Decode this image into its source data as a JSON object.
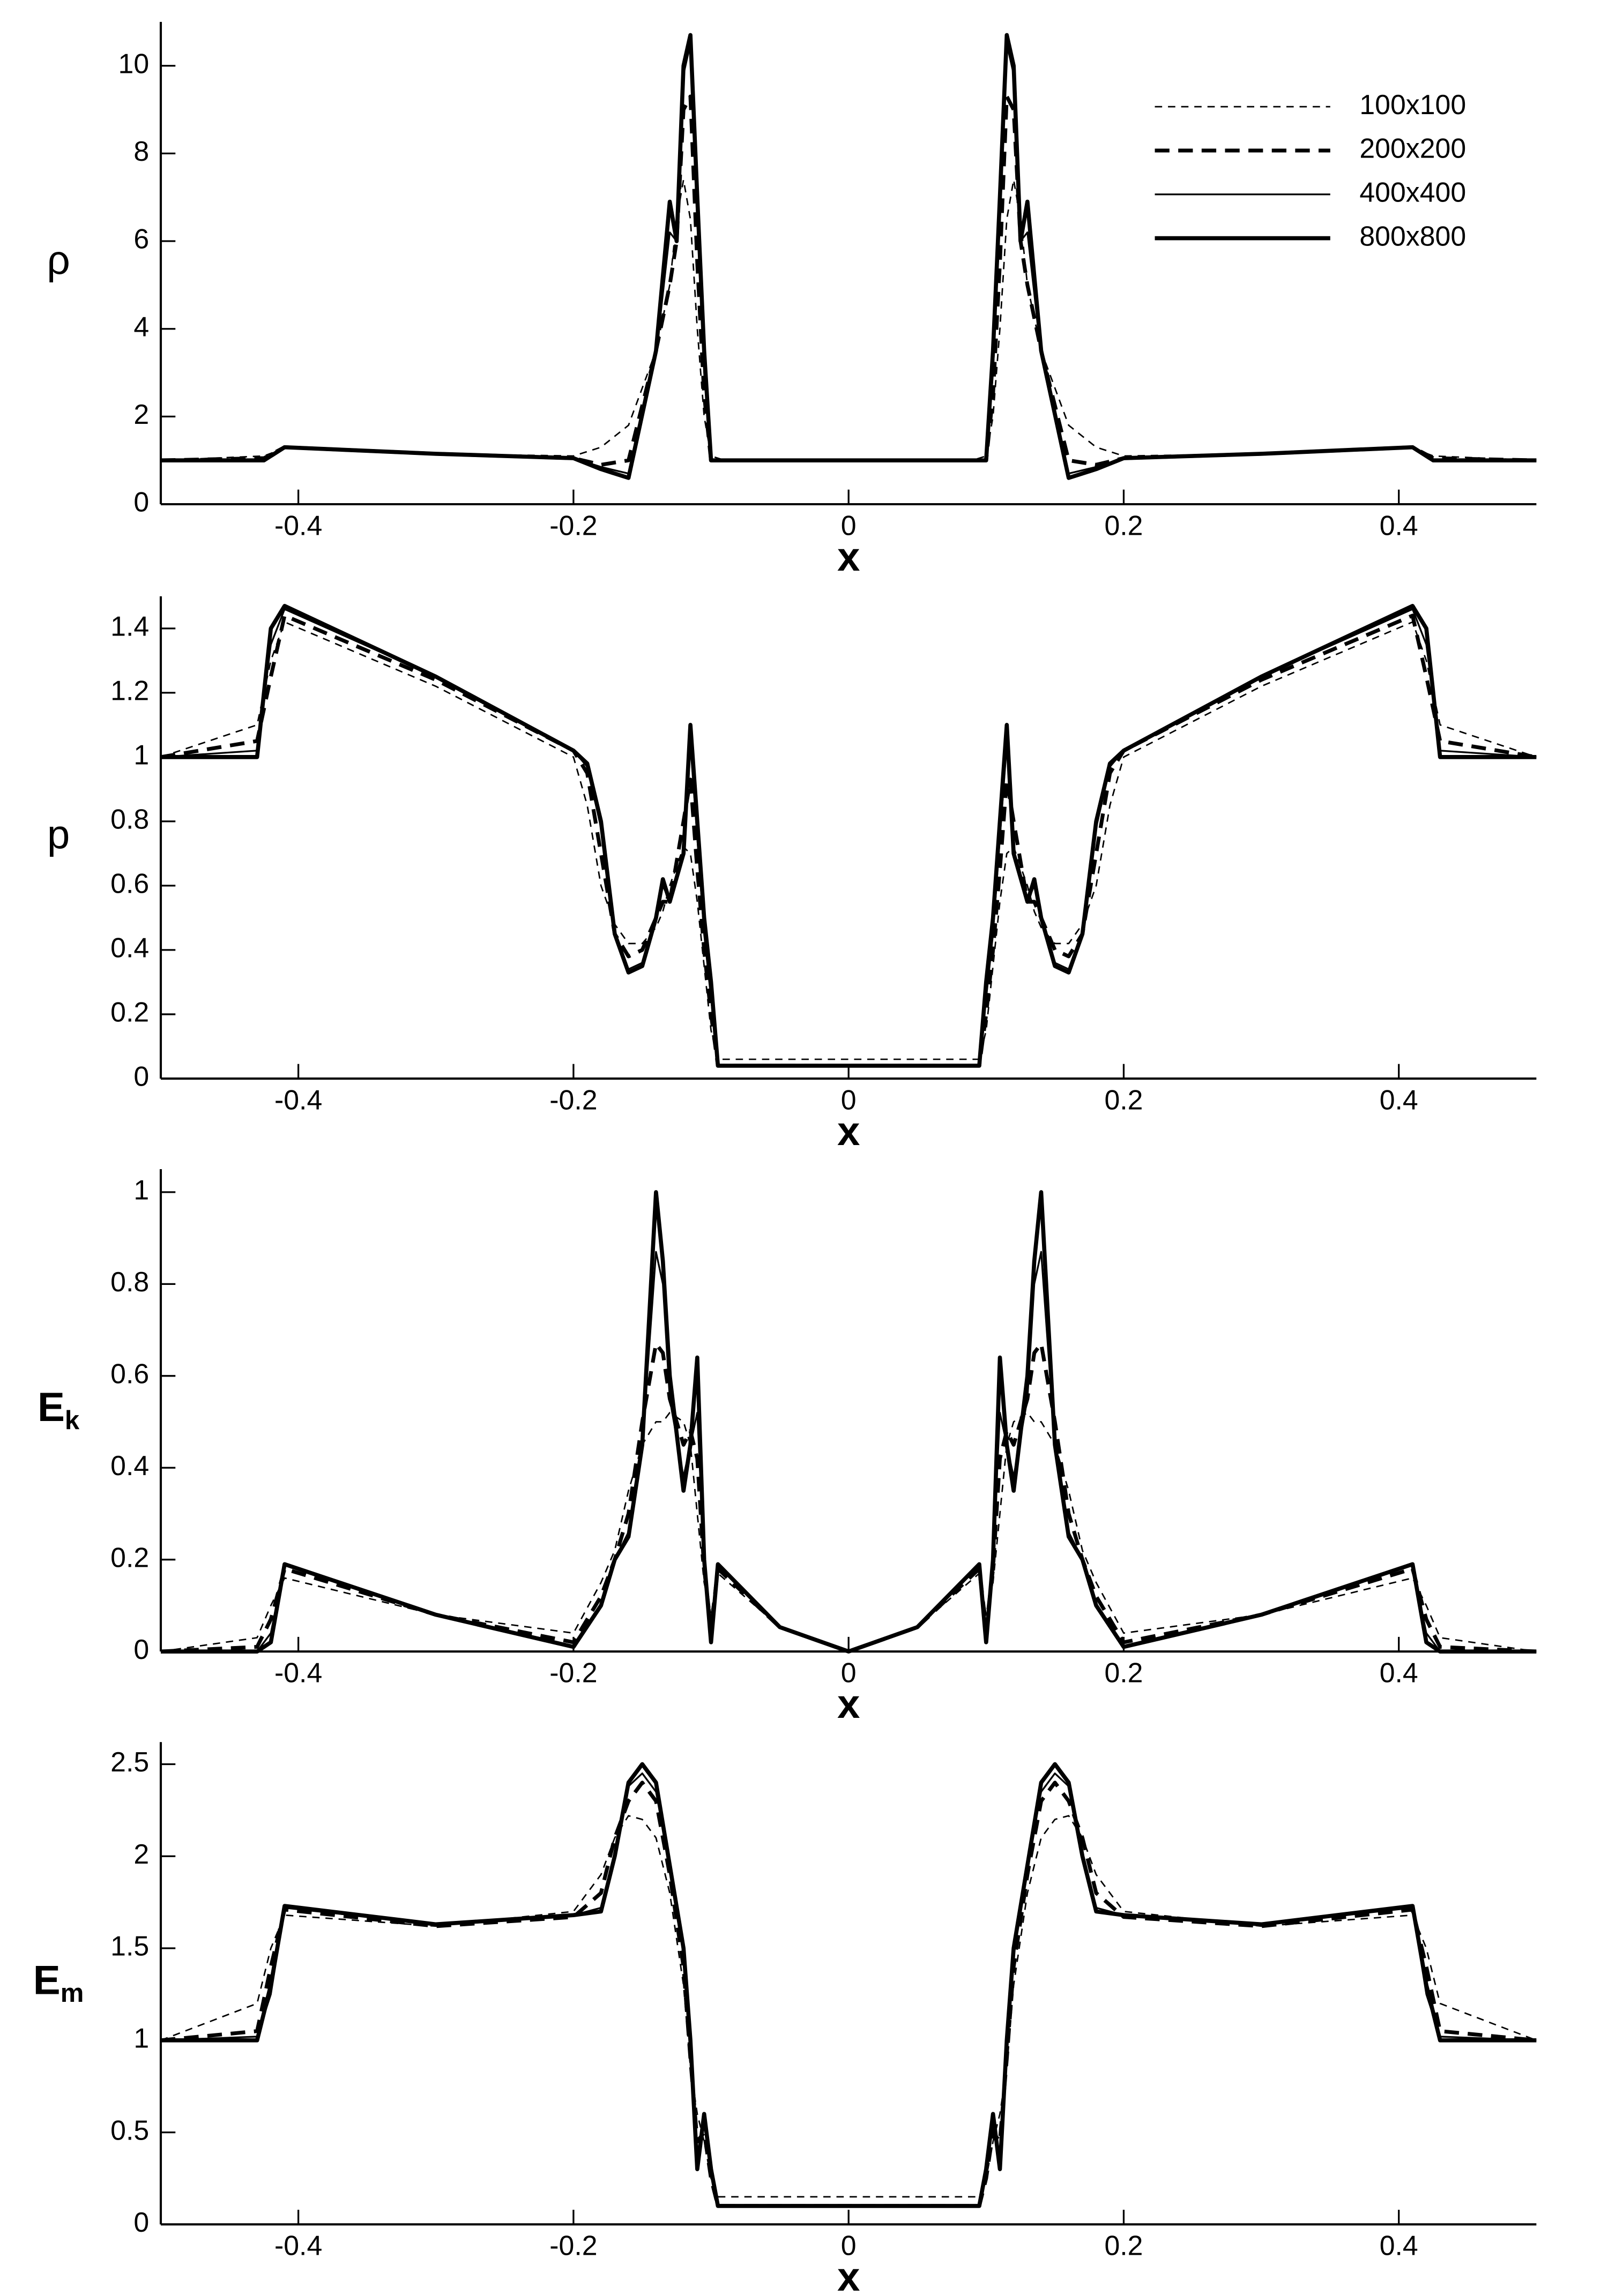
{
  "chart_data": [
    {
      "type": "line",
      "ylabel": "ρ",
      "xlabel": "x",
      "legend": "upper right",
      "xlim": [
        -0.5,
        0.5
      ],
      "xticks": [
        -0.4,
        -0.2,
        0,
        0.2,
        0.4
      ],
      "ylim": [
        0,
        11
      ],
      "yticks": [
        0,
        2,
        4,
        6,
        8,
        10
      ],
      "x": [
        -0.5,
        -0.425,
        -0.41,
        -0.3,
        -0.2,
        -0.18,
        -0.16,
        -0.14,
        -0.13,
        -0.125,
        -0.12,
        -0.115,
        -0.11,
        -0.105,
        -0.1,
        -0.09,
        0.09,
        0.1,
        0.105,
        0.11,
        0.115,
        0.12,
        0.125,
        0.13,
        0.14,
        0.16,
        0.18,
        0.2,
        0.3,
        0.41,
        0.425,
        0.5
      ],
      "series": [
        {
          "name": "100x100",
          "color": "#000000",
          "linestyle": "dashed",
          "linewidth": 1,
          "values": [
            1,
            1.1,
            1.28,
            1.15,
            1.1,
            1.3,
            1.8,
            3.5,
            5,
            6.5,
            7.4,
            6.5,
            4,
            2,
            1.1,
            1,
            1,
            1.1,
            2,
            4,
            6.5,
            7.4,
            6.5,
            5,
            3.5,
            1.8,
            1.3,
            1.1,
            1.15,
            1.28,
            1.1,
            1
          ]
        },
        {
          "name": "200x200",
          "color": "#000000",
          "linestyle": "dashed",
          "linewidth": 2.6,
          "values": [
            1,
            1.05,
            1.3,
            1.15,
            1.05,
            0.9,
            1,
            3.5,
            5,
            6,
            9,
            9.3,
            5.5,
            2.5,
            1,
            1,
            1,
            1,
            2.5,
            5.5,
            9.3,
            9,
            6,
            5,
            3.5,
            1,
            0.9,
            1.05,
            1.15,
            1.3,
            1.05,
            1
          ]
        },
        {
          "name": "400x400",
          "color": "#000000",
          "linestyle": "solid",
          "linewidth": 1.2,
          "values": [
            1,
            1.02,
            1.3,
            1.15,
            1.05,
            0.85,
            0.7,
            3.4,
            6.2,
            6,
            9.8,
            10.5,
            6.5,
            3,
            1,
            1,
            1,
            1,
            3,
            6.5,
            10.5,
            9.8,
            6,
            6.2,
            3.4,
            0.7,
            0.85,
            1.05,
            1.15,
            1.3,
            1.02,
            1
          ]
        },
        {
          "name": "800x800",
          "color": "#000000",
          "linestyle": "solid",
          "linewidth": 2.8,
          "values": [
            1,
            1,
            1.3,
            1.15,
            1.05,
            0.8,
            0.6,
            3.5,
            6.9,
            6,
            10,
            10.7,
            7,
            3.5,
            1,
            1,
            1,
            1,
            3.5,
            7,
            10.7,
            10,
            6,
            6.9,
            3.5,
            0.6,
            0.8,
            1.05,
            1.15,
            1.3,
            1,
            1
          ]
        }
      ]
    },
    {
      "type": "line",
      "ylabel": "p",
      "xlabel": "x",
      "xlim": [
        -0.5,
        0.5
      ],
      "xticks": [
        -0.4,
        -0.2,
        0,
        0.2,
        0.4
      ],
      "ylim": [
        0,
        1.5
      ],
      "yticks": [
        0,
        0.2,
        0.4,
        0.6,
        0.8,
        1,
        1.2,
        1.4
      ],
      "x": [
        -0.5,
        -0.43,
        -0.42,
        -0.41,
        -0.3,
        -0.2,
        -0.19,
        -0.18,
        -0.17,
        -0.16,
        -0.15,
        -0.14,
        -0.135,
        -0.13,
        -0.12,
        -0.115,
        -0.11,
        -0.105,
        -0.1,
        -0.095,
        0.095,
        0.1,
        0.105,
        0.11,
        0.115,
        0.12,
        0.13,
        0.135,
        0.14,
        0.15,
        0.16,
        0.17,
        0.18,
        0.19,
        0.2,
        0.3,
        0.41,
        0.42,
        0.43,
        0.5
      ],
      "series": [
        {
          "color": "#000000",
          "linestyle": "dashed",
          "linewidth": 1,
          "values": [
            1,
            1.1,
            1.3,
            1.42,
            1.22,
            1,
            0.85,
            0.6,
            0.48,
            0.42,
            0.42,
            0.47,
            0.52,
            0.6,
            0.72,
            0.7,
            0.55,
            0.35,
            0.15,
            0.06,
            0.06,
            0.15,
            0.35,
            0.55,
            0.7,
            0.72,
            0.6,
            0.52,
            0.47,
            0.42,
            0.42,
            0.48,
            0.6,
            0.85,
            1,
            1.22,
            1.42,
            1.3,
            1.1,
            1
          ]
        },
        {
          "color": "#000000",
          "linestyle": "dashed",
          "linewidth": 2.6,
          "values": [
            1,
            1.05,
            1.25,
            1.44,
            1.24,
            1.02,
            0.95,
            0.7,
            0.45,
            0.38,
            0.4,
            0.5,
            0.55,
            0.55,
            0.8,
            0.93,
            0.65,
            0.4,
            0.2,
            0.04,
            0.04,
            0.2,
            0.4,
            0.65,
            0.93,
            0.8,
            0.55,
            0.55,
            0.5,
            0.4,
            0.38,
            0.45,
            0.7,
            0.95,
            1.02,
            1.24,
            1.44,
            1.25,
            1.05,
            1
          ]
        },
        {
          "color": "#000000",
          "linestyle": "solid",
          "linewidth": 1.2,
          "values": [
            1,
            1.02,
            1.35,
            1.46,
            1.25,
            1.02,
            0.97,
            0.78,
            0.45,
            0.34,
            0.36,
            0.5,
            0.6,
            0.55,
            0.7,
            1.04,
            0.75,
            0.45,
            0.25,
            0.04,
            0.04,
            0.25,
            0.45,
            0.75,
            1.04,
            0.7,
            0.55,
            0.6,
            0.5,
            0.36,
            0.34,
            0.45,
            0.78,
            0.97,
            1.02,
            1.25,
            1.46,
            1.35,
            1.02,
            1
          ]
        },
        {
          "color": "#000000",
          "linestyle": "solid",
          "linewidth": 2.8,
          "values": [
            1,
            1,
            1.4,
            1.47,
            1.25,
            1.02,
            0.98,
            0.8,
            0.45,
            0.33,
            0.35,
            0.5,
            0.62,
            0.55,
            0.7,
            1.1,
            0.8,
            0.5,
            0.3,
            0.04,
            0.04,
            0.3,
            0.5,
            0.8,
            1.1,
            0.7,
            0.55,
            0.62,
            0.5,
            0.35,
            0.33,
            0.45,
            0.8,
            0.98,
            1.02,
            1.25,
            1.47,
            1.4,
            1,
            1
          ]
        }
      ]
    },
    {
      "type": "line",
      "ylabel": "E",
      "ylabel_sub": "k",
      "xlabel": "x",
      "xlim": [
        -0.5,
        0.5
      ],
      "xticks": [
        -0.4,
        -0.2,
        0,
        0.2,
        0.4
      ],
      "ylim": [
        0,
        1.05
      ],
      "yticks": [
        0,
        0.2,
        0.4,
        0.6,
        0.8,
        1
      ],
      "x": [
        -0.5,
        -0.43,
        -0.42,
        -0.41,
        -0.3,
        -0.2,
        -0.18,
        -0.17,
        -0.16,
        -0.15,
        -0.14,
        -0.135,
        -0.13,
        -0.12,
        -0.115,
        -0.11,
        -0.105,
        -0.1,
        -0.095,
        -0.05,
        0,
        0.05,
        0.095,
        0.1,
        0.105,
        0.11,
        0.115,
        0.12,
        0.13,
        0.135,
        0.14,
        0.15,
        0.16,
        0.17,
        0.18,
        0.2,
        0.3,
        0.41,
        0.42,
        0.43,
        0.5
      ],
      "series": [
        {
          "color": "#000000",
          "linestyle": "dashed",
          "linewidth": 1,
          "values": [
            0,
            0.03,
            0.1,
            0.16,
            0.08,
            0.04,
            0.15,
            0.22,
            0.35,
            0.45,
            0.5,
            0.5,
            0.52,
            0.5,
            0.45,
            0.3,
            0.15,
            0.08,
            0.17,
            0.053,
            0,
            0.053,
            0.17,
            0.08,
            0.15,
            0.3,
            0.45,
            0.5,
            0.52,
            0.5,
            0.5,
            0.45,
            0.35,
            0.22,
            0.15,
            0.04,
            0.08,
            0.16,
            0.1,
            0.03,
            0
          ]
        },
        {
          "color": "#000000",
          "linestyle": "dashed",
          "linewidth": 2.6,
          "values": [
            0,
            0.01,
            0.07,
            0.18,
            0.08,
            0.02,
            0.12,
            0.2,
            0.3,
            0.5,
            0.67,
            0.65,
            0.55,
            0.45,
            0.48,
            0.42,
            0.18,
            0.05,
            0.18,
            0.053,
            0,
            0.053,
            0.18,
            0.05,
            0.18,
            0.42,
            0.48,
            0.45,
            0.55,
            0.65,
            0.67,
            0.5,
            0.3,
            0.2,
            0.12,
            0.02,
            0.08,
            0.18,
            0.07,
            0.01,
            0
          ]
        },
        {
          "color": "#000000",
          "linestyle": "solid",
          "linewidth": 1.2,
          "values": [
            0,
            0,
            0.04,
            0.19,
            0.08,
            0.01,
            0.1,
            0.2,
            0.26,
            0.45,
            0.87,
            0.8,
            0.55,
            0.38,
            0.45,
            0.52,
            0.2,
            0.03,
            0.19,
            0.053,
            0,
            0.053,
            0.19,
            0.03,
            0.2,
            0.52,
            0.45,
            0.38,
            0.55,
            0.8,
            0.87,
            0.45,
            0.26,
            0.2,
            0.1,
            0.01,
            0.08,
            0.19,
            0.04,
            0,
            0
          ]
        },
        {
          "color": "#000000",
          "linestyle": "solid",
          "linewidth": 2.8,
          "values": [
            0,
            0,
            0.02,
            0.19,
            0.08,
            0.01,
            0.1,
            0.2,
            0.25,
            0.45,
            1,
            0.85,
            0.6,
            0.35,
            0.45,
            0.64,
            0.2,
            0.02,
            0.19,
            0.053,
            0,
            0.053,
            0.19,
            0.02,
            0.2,
            0.64,
            0.45,
            0.35,
            0.6,
            0.85,
            1,
            0.45,
            0.25,
            0.2,
            0.1,
            0.01,
            0.08,
            0.19,
            0.02,
            0,
            0
          ]
        }
      ]
    },
    {
      "type": "line",
      "ylabel": "E",
      "ylabel_sub": "m",
      "xlabel": "x",
      "xlim": [
        -0.5,
        0.5
      ],
      "xticks": [
        -0.4,
        -0.2,
        0,
        0.2,
        0.4
      ],
      "ylim": [
        0,
        2.62
      ],
      "yticks": [
        0,
        0.5,
        1,
        1.5,
        2,
        2.5
      ],
      "x": [
        -0.5,
        -0.43,
        -0.42,
        -0.41,
        -0.3,
        -0.2,
        -0.18,
        -0.17,
        -0.16,
        -0.15,
        -0.14,
        -0.13,
        -0.12,
        -0.115,
        -0.11,
        -0.105,
        -0.1,
        -0.095,
        0.095,
        0.1,
        0.105,
        0.11,
        0.115,
        0.12,
        0.13,
        0.14,
        0.15,
        0.16,
        0.17,
        0.18,
        0.2,
        0.3,
        0.41,
        0.42,
        0.43,
        0.5
      ],
      "series": [
        {
          "color": "#000000",
          "linestyle": "dashed",
          "linewidth": 1,
          "values": [
            1,
            1.2,
            1.5,
            1.68,
            1.62,
            1.7,
            1.9,
            2.1,
            2.22,
            2.2,
            2.1,
            1.8,
            1.3,
            0.85,
            0.6,
            0.45,
            0.25,
            0.15,
            0.15,
            0.25,
            0.45,
            0.6,
            0.85,
            1.3,
            1.8,
            2.1,
            2.2,
            2.22,
            2.1,
            1.9,
            1.7,
            1.62,
            1.68,
            1.5,
            1.2,
            1
          ]
        },
        {
          "color": "#000000",
          "linestyle": "dashed",
          "linewidth": 2.6,
          "values": [
            1,
            1.05,
            1.4,
            1.71,
            1.62,
            1.67,
            1.8,
            2.1,
            2.3,
            2.4,
            2.3,
            1.9,
            1.4,
            0.9,
            0.45,
            0.5,
            0.25,
            0.1,
            0.1,
            0.25,
            0.5,
            0.45,
            0.9,
            1.4,
            1.9,
            2.3,
            2.4,
            2.3,
            2.1,
            1.8,
            1.67,
            1.62,
            1.71,
            1.4,
            1.05,
            1
          ]
        },
        {
          "color": "#000000",
          "linestyle": "solid",
          "linewidth": 1.2,
          "values": [
            1,
            1.02,
            1.25,
            1.72,
            1.63,
            1.68,
            1.72,
            2,
            2.38,
            2.45,
            2.35,
            1.95,
            1.5,
            0.95,
            0.35,
            0.55,
            0.3,
            0.1,
            0.1,
            0.3,
            0.55,
            0.35,
            0.95,
            1.5,
            1.95,
            2.35,
            2.45,
            2.38,
            2,
            1.72,
            1.68,
            1.63,
            1.72,
            1.25,
            1.02,
            1
          ]
        },
        {
          "color": "#000000",
          "linestyle": "solid",
          "linewidth": 2.8,
          "values": [
            1,
            1,
            1.3,
            1.73,
            1.63,
            1.68,
            1.7,
            2,
            2.4,
            2.5,
            2.4,
            1.95,
            1.5,
            1,
            0.3,
            0.6,
            0.3,
            0.1,
            0.1,
            0.3,
            0.6,
            0.3,
            1,
            1.5,
            1.95,
            2.4,
            2.5,
            2.4,
            2,
            1.7,
            1.68,
            1.63,
            1.73,
            1.3,
            1,
            1
          ]
        }
      ]
    }
  ]
}
